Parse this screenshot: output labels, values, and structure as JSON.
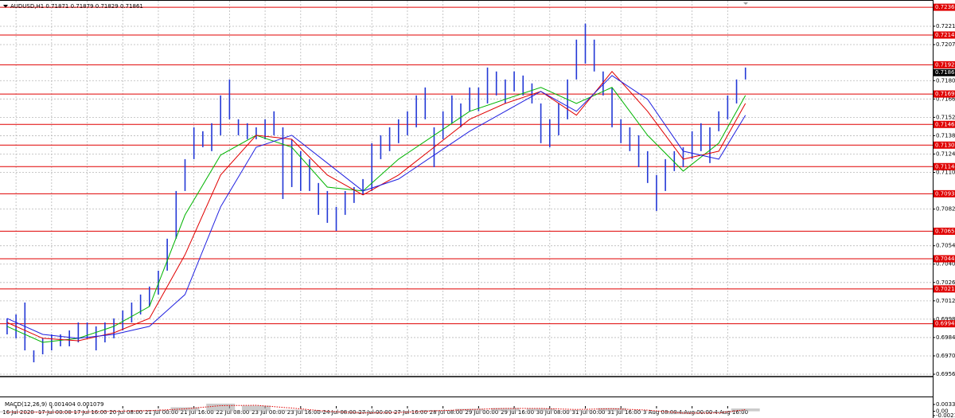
{
  "chart_data": [
    {
      "type": "ohlc",
      "title": "AUDUSD,H1  0.71871 0.71879 0.71829 0.71861",
      "color": "#2338d6",
      "xlim": [
        -7.2,
        412.2
      ],
      "ylim": [
        0.69548,
        0.72391
      ],
      "grid": true,
      "xticks": [
        {
          "value": 0,
          "label": "16 Jul 2020"
        },
        {
          "value": 16,
          "label": "17 Jul 00:00"
        },
        {
          "value": 32,
          "label": "17 Jul 16:00"
        },
        {
          "value": 48,
          "label": "20 Jul 08:00"
        },
        {
          "value": 64,
          "label": "21 Jul 00:00"
        },
        {
          "value": 80,
          "label": "21 Jul 16:00"
        },
        {
          "value": 96,
          "label": "22 Jul 08:00"
        },
        {
          "value": 112,
          "label": "23 Jul 00:00"
        },
        {
          "value": 128,
          "label": "23 Jul 16:00"
        },
        {
          "value": 144,
          "label": "24 Jul 08:00"
        },
        {
          "value": 160,
          "label": "27 Jul 00:00"
        },
        {
          "value": 176,
          "label": "27 Jul 16:00"
        },
        {
          "value": 192,
          "label": "28 Jul 08:00"
        },
        {
          "value": 208,
          "label": "29 Jul 00:00"
        },
        {
          "value": 224,
          "label": "29 Jul 16:00"
        },
        {
          "value": 240,
          "label": "30 Jul 08:00"
        },
        {
          "value": 256,
          "label": "31 Jul 00:00"
        },
        {
          "value": 272,
          "label": "31 Jul 16:00"
        },
        {
          "value": 288,
          "label": "3 Aug 08:00"
        },
        {
          "value": 304,
          "label": "4 Aug 00:00"
        },
        {
          "value": 320,
          "label": "4 Aug 16:00"
        }
      ],
      "yticks": [
        0.72215,
        0.72075,
        {
          "value": 0.718,
          "label": "0.71800"
        },
        {
          "value": 0.7166,
          "label": "0.71660"
        },
        {
          "value": 0.7152,
          "label": "0.71520"
        },
        {
          "value": 0.7138,
          "label": "0.71380"
        },
        {
          "value": 0.7124,
          "label": "0.71240"
        },
        {
          "value": 0.711,
          "label": "0.71100"
        },
        {
          "value": 0.7082,
          "label": "0.70820"
        },
        {
          "value": 0.7054,
          "label": "0.70540"
        },
        {
          "value": 0.704,
          "label": "0.70400"
        },
        {
          "value": 0.7026,
          "label": "0.70260"
        },
        {
          "value": 0.7012,
          "label": "0.70120"
        },
        {
          "value": 0.6998,
          "label": "0.69980"
        },
        {
          "value": 0.6984,
          "label": "0.69840"
        },
        {
          "value": 0.697,
          "label": "0.69700"
        },
        {
          "value": 0.6956,
          "label": "0.69560"
        }
      ],
      "x": [
        -4,
        0,
        4,
        8,
        12,
        16,
        20,
        24,
        28,
        32,
        36,
        40,
        44,
        48,
        52,
        56,
        60,
        64,
        68,
        72,
        76,
        80,
        84,
        88,
        92,
        96,
        100,
        104,
        108,
        112,
        116,
        120,
        124,
        128,
        132,
        136,
        140,
        144,
        148,
        152,
        156,
        160,
        164,
        168,
        172,
        176,
        180,
        184,
        188,
        192,
        196,
        200,
        204,
        208,
        212,
        216,
        220,
        224,
        228,
        232,
        236,
        240,
        244,
        248,
        252,
        256,
        260,
        264,
        268,
        272,
        276,
        280,
        284,
        288,
        292,
        296,
        300,
        304,
        308,
        312,
        316,
        320,
        324,
        328
      ],
      "high": [
        0.69986,
        0.70016,
        0.70107,
        0.69742,
        0.69834,
        0.69864,
        0.69864,
        0.69894,
        0.69955,
        0.69955,
        0.69925,
        0.69955,
        0.69986,
        0.70046,
        0.70107,
        0.70168,
        0.70229,
        0.7035,
        0.70594,
        0.70958,
        0.71201,
        0.71444,
        0.71414,
        0.71475,
        0.71687,
        0.71809,
        0.71505,
        0.71475,
        0.71444,
        0.71505,
        0.71566,
        0.71444,
        0.71353,
        0.71262,
        0.71201,
        0.71019,
        0.70958,
        0.70837,
        0.70958,
        0.70988,
        0.71049,
        0.71323,
        0.71383,
        0.71444,
        0.71505,
        0.71566,
        0.71687,
        0.71748,
        0.71444,
        0.71566,
        0.71687,
        0.71626,
        0.71748,
        0.71748,
        0.719,
        0.7187,
        0.71809,
        0.7187,
        0.71839,
        0.71779,
        0.71626,
        0.71505,
        0.71626,
        0.71809,
        0.72113,
        0.72235,
        0.72113,
        0.7187,
        0.71748,
        0.71505,
        0.71444,
        0.71383,
        0.71262,
        0.7108,
        0.71201,
        0.71262,
        0.71292,
        0.71414,
        0.71475,
        0.71444,
        0.71566,
        0.71687,
        0.71809,
        0.719
      ],
      "low": [
        0.69864,
        0.69834,
        0.69742,
        0.69651,
        0.69712,
        0.69742,
        0.69773,
        0.69773,
        0.69803,
        0.69834,
        0.69742,
        0.69803,
        0.69834,
        0.69894,
        0.69955,
        0.70016,
        0.70077,
        0.70168,
        0.7035,
        0.70594,
        0.70958,
        0.71201,
        0.71292,
        0.71262,
        0.71383,
        0.71505,
        0.71383,
        0.71353,
        0.71353,
        0.71353,
        0.71383,
        0.70897,
        0.70988,
        0.70958,
        0.70958,
        0.70776,
        0.70715,
        0.70654,
        0.70776,
        0.70867,
        0.70928,
        0.70958,
        0.71201,
        0.71262,
        0.71323,
        0.71383,
        0.71444,
        0.71505,
        0.7114,
        0.71353,
        0.71475,
        0.71444,
        0.71566,
        0.71566,
        0.71626,
        0.71687,
        0.71626,
        0.71718,
        0.71687,
        0.71626,
        0.71323,
        0.71292,
        0.71383,
        0.71505,
        0.71809,
        0.7193,
        0.7187,
        0.71687,
        0.71444,
        0.71323,
        0.71262,
        0.7114,
        0.71019,
        0.70806,
        0.70958,
        0.7111,
        0.7114,
        0.71201,
        0.71262,
        0.71171,
        0.71414,
        0.71505,
        0.71626,
        0.71809
      ],
      "ma_x": [
        -4,
        12,
        28,
        44,
        60,
        76,
        92,
        108,
        124,
        140,
        156,
        172,
        188,
        204,
        220,
        236,
        252,
        268,
        284,
        300,
        316,
        328
      ],
      "ma": [
        {
          "color": "#00b400",
          "values": [
            0.69925,
            0.69803,
            0.69834,
            0.69925,
            0.70077,
            0.70776,
            0.71232,
            0.71383,
            0.71292,
            0.70988,
            0.70958,
            0.71201,
            0.71383,
            0.71566,
            0.71658,
            0.71748,
            0.71626,
            0.71748,
            0.71383,
            0.7111,
            0.71323,
            0.71687
          ]
        },
        {
          "color": "#e00000",
          "values": [
            0.69955,
            0.69834,
            0.69815,
            0.69876,
            0.69986,
            0.70472,
            0.7108,
            0.71383,
            0.71353,
            0.7108,
            0.70928,
            0.7108,
            0.71292,
            0.71505,
            0.71626,
            0.71718,
            0.71536,
            0.7187,
            0.71566,
            0.71201,
            0.71262,
            0.71626
          ]
        },
        {
          "color": "#2020e0",
          "values": [
            0.69986,
            0.69864,
            0.69834,
            0.69864,
            0.69925,
            0.70168,
            0.70837,
            0.71292,
            0.71383,
            0.71171,
            0.70958,
            0.71049,
            0.71232,
            0.71414,
            0.71566,
            0.71718,
            0.71566,
            0.71839,
            0.71658,
            0.71262,
            0.71201,
            0.71536
          ]
        }
      ],
      "level_color": "#e00000",
      "levels": [
        0.7236,
        0.72148,
        0.71921,
        0.71698,
        0.71466,
        0.71308,
        0.71144,
        0.70937,
        0.70651,
        0.70441,
        0.70211,
        0.69945
      ],
      "last": 0.71861
    },
    {
      "type": "macd",
      "title": "MACD(12,26,9)  0.001404 0.001079",
      "color": "#a8a8a8",
      "signal_color": "#e00000",
      "xlim": [
        -7.2,
        412.2
      ],
      "ylim": [
        -0.00254,
        0.00695
      ],
      "yticks": [
        0.00339,
        {
          "value": 0,
          "label": "0.00"
        },
        -0.00214
      ],
      "x": [
        -4,
        12,
        28,
        44,
        60,
        76,
        92,
        108,
        124,
        140,
        156,
        172,
        188,
        204,
        220,
        236,
        252,
        268,
        284,
        300,
        316,
        328
      ],
      "values": [
        -0.0005,
        -0.0006,
        -0.0003,
        0.0002,
        0.0005,
        0.002,
        0.0038,
        0.0028,
        0.0008,
        -0.0008,
        -0.0012,
        -0.0004,
        0.0006,
        0.0012,
        0.0016,
        0.0014,
        0.0006,
        0.0016,
        0.0002,
        -0.0014,
        -0.0006,
        0.0014
      ],
      "signal": [
        -0.0004,
        -0.0005,
        -0.0004,
        0,
        0.0003,
        0.0012,
        0.0028,
        0.003,
        0.0016,
        0,
        -0.0008,
        -0.0006,
        0.0002,
        0.0009,
        0.0014,
        0.0014,
        0.0009,
        0.0013,
        0.0006,
        -0.0009,
        -0.0008,
        0.0008
      ]
    }
  ]
}
